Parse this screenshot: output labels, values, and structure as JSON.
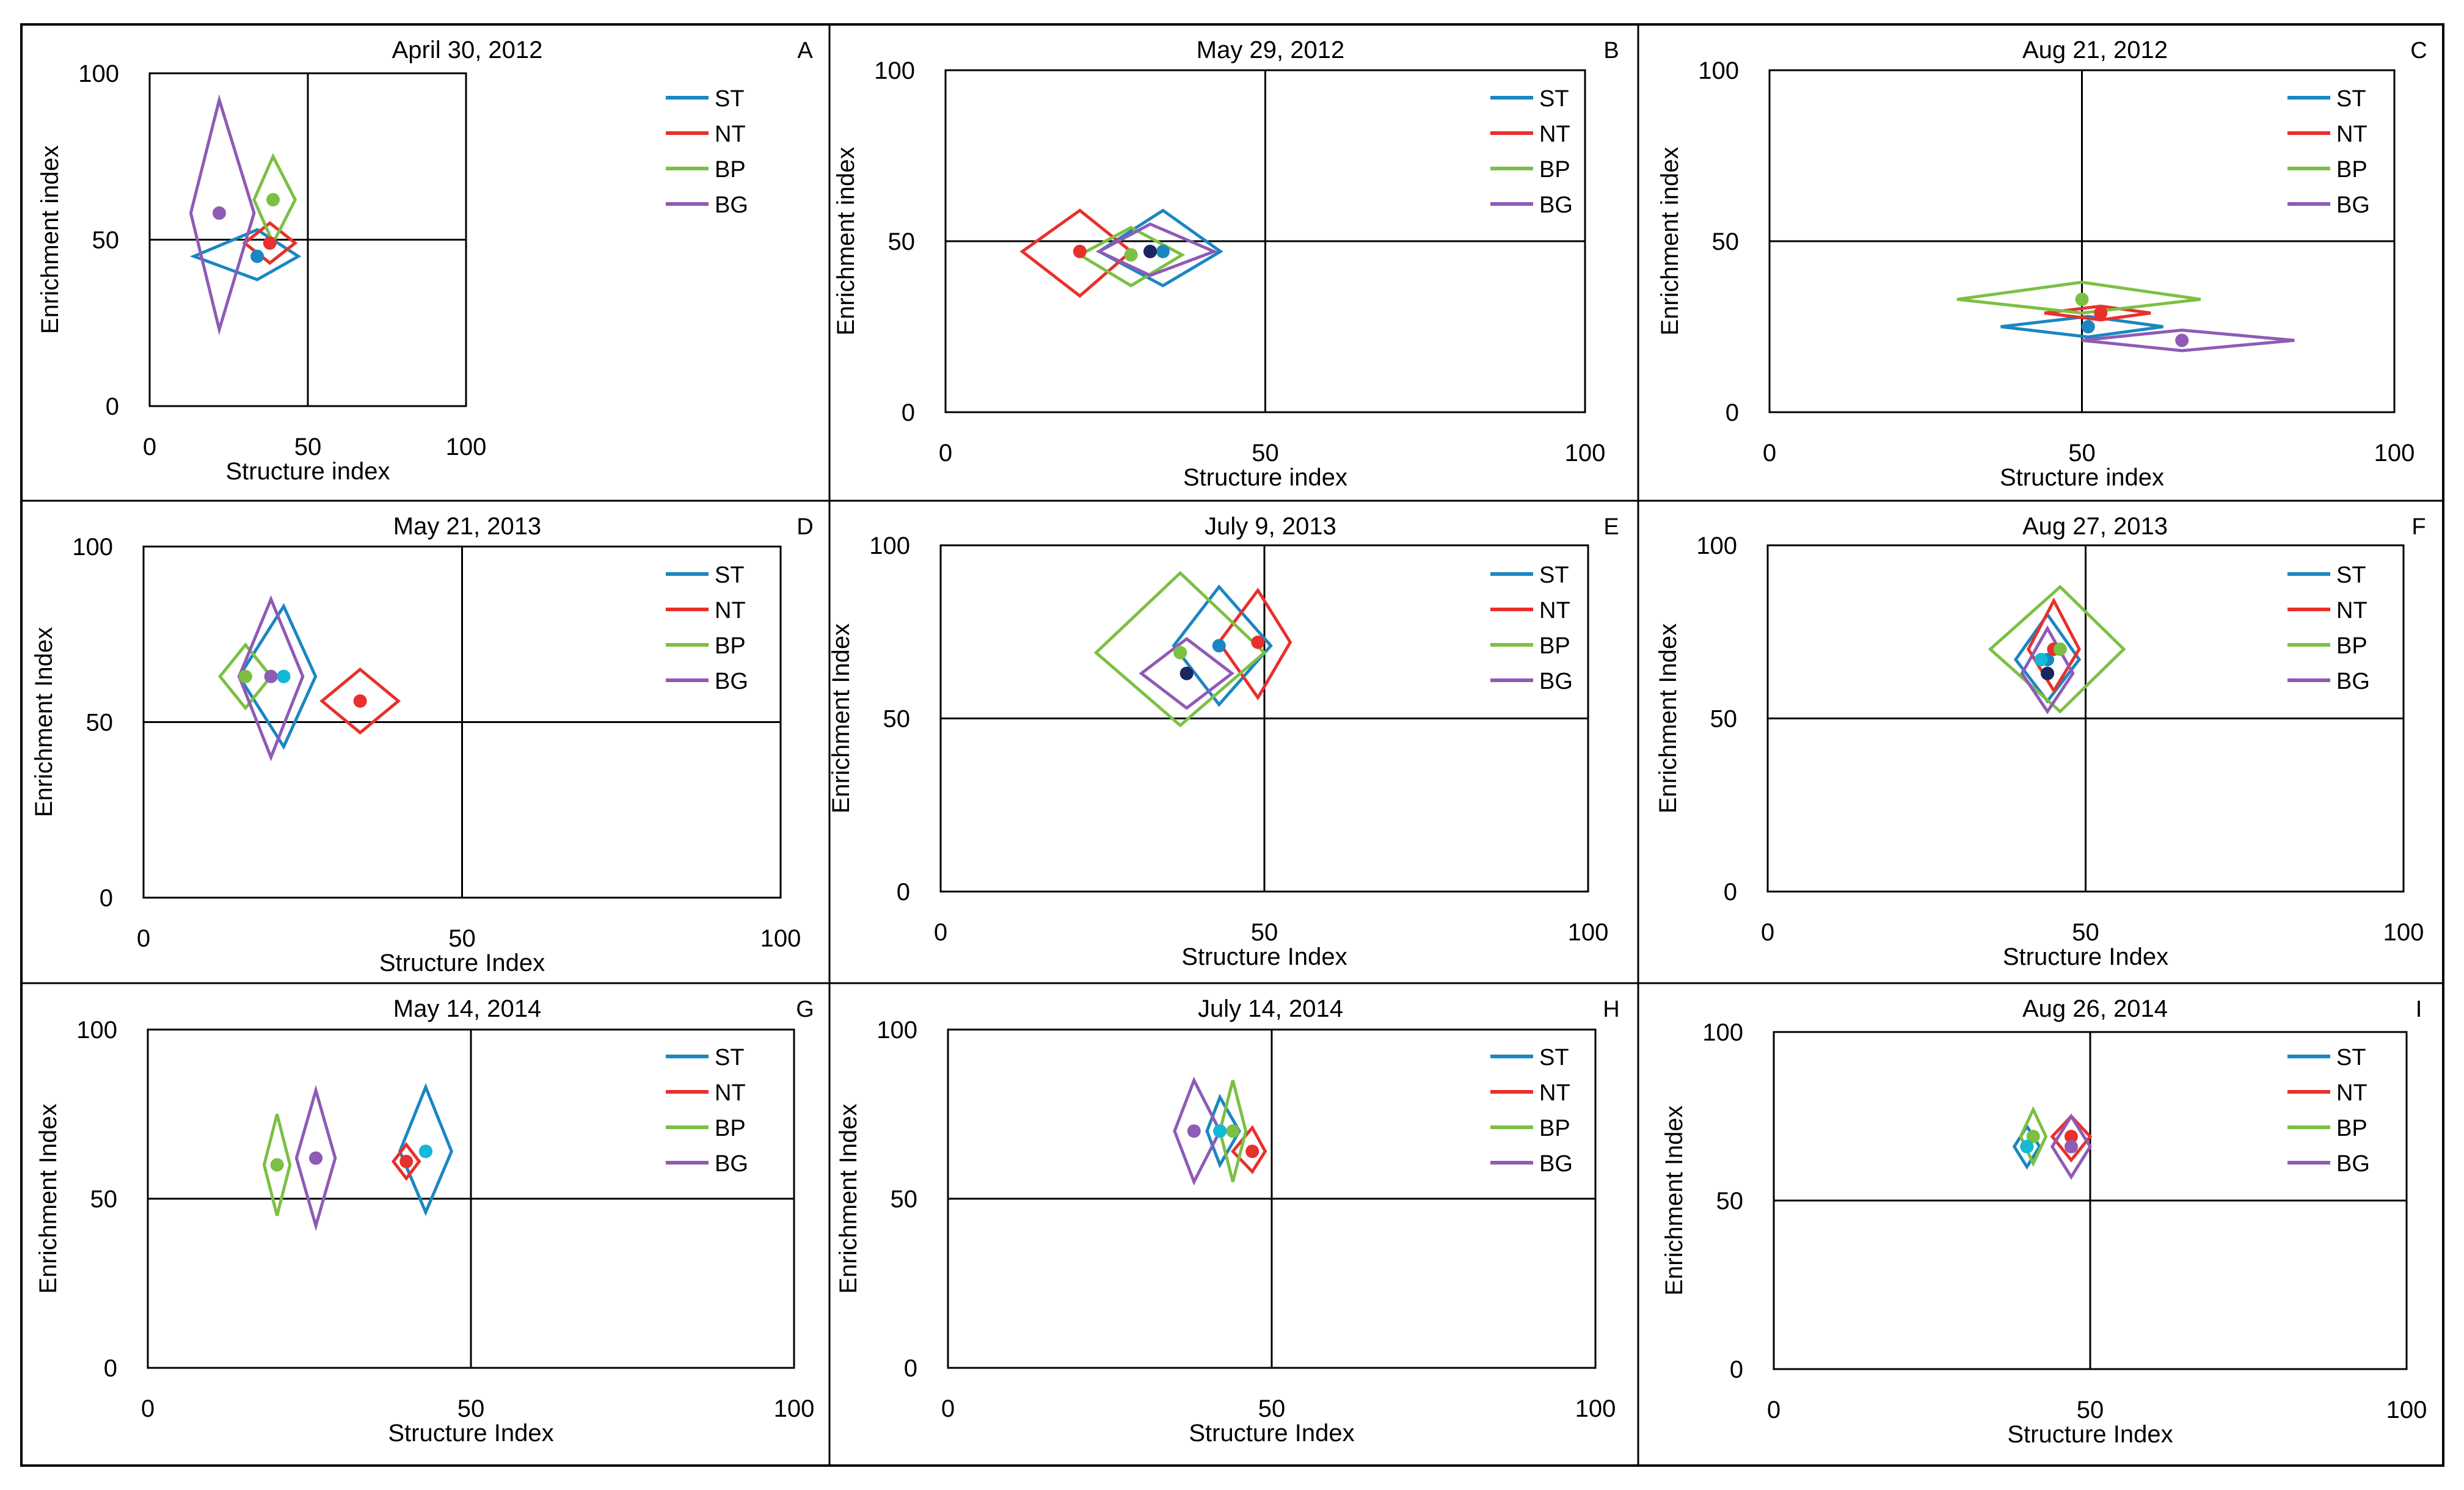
{
  "figure": {
    "domain": "ecological soil food web ordination"
  },
  "legend_colors": {
    "ST": "#1a86c2",
    "NT": "#e8302c",
    "BP": "#7bc043",
    "BG": "#8e5bb5"
  },
  "center_dot_colors": {
    "ST": "#1a86c2",
    "NT": "#e8302c",
    "BP": "#7bc043",
    "BG": "#8e5bb5",
    "aux1": "#13b9d6",
    "aux2": "#1a2660"
  },
  "chart_data": [
    {
      "id": "A",
      "type": "scatter",
      "title": "April 30, 2012",
      "letter": "A",
      "xlabel": "Structure index",
      "ylabel": "Enrichment index",
      "xlim": [
        0,
        100
      ],
      "ylim": [
        0,
        100
      ],
      "ref_lines": {
        "x": 50,
        "y": 50
      },
      "tick_labels": {
        "x": [
          "0",
          "50",
          "100"
        ],
        "y": [
          "0",
          "50",
          "100"
        ]
      },
      "legend": [
        "ST",
        "NT",
        "BP",
        "BG"
      ],
      "series": [
        {
          "name": "ST",
          "cx": 34,
          "cy": 45,
          "xl": 14,
          "xr": 47,
          "yb": 38,
          "yt": 53
        },
        {
          "name": "NT",
          "cx": 38,
          "cy": 49,
          "xl": 30,
          "xr": 46,
          "yb": 43,
          "yt": 55
        },
        {
          "name": "BP",
          "cx": 39,
          "cy": 62,
          "xl": 33,
          "xr": 46,
          "yb": 49,
          "yt": 75
        },
        {
          "name": "BG",
          "cx": 22,
          "cy": 58,
          "xl": 13,
          "xr": 33,
          "yb": 23,
          "yt": 92
        }
      ],
      "extra_dots": []
    },
    {
      "id": "B",
      "type": "scatter",
      "title": "May 29, 2012",
      "letter": "B",
      "xlabel": "Structure index",
      "ylabel": "Enrichment index",
      "xlim": [
        0,
        100
      ],
      "ylim": [
        0,
        100
      ],
      "ref_lines": {
        "x": 50,
        "y": 50
      },
      "tick_labels": {
        "x": [
          "0",
          "50",
          "100"
        ],
        "y": [
          "0",
          "50",
          "100"
        ]
      },
      "legend": [
        "ST",
        "NT",
        "BP",
        "BG"
      ],
      "series": [
        {
          "name": "ST",
          "cx": 34,
          "cy": 47,
          "xl": 24,
          "xr": 43,
          "yb": 37,
          "yt": 59
        },
        {
          "name": "NT",
          "cx": 21,
          "cy": 47,
          "xl": 12,
          "xr": 29,
          "yb": 34,
          "yt": 59
        },
        {
          "name": "BP",
          "cx": 29,
          "cy": 46,
          "xl": 21,
          "xr": 37,
          "yb": 37,
          "yt": 54
        },
        {
          "name": "BG",
          "cx": 32,
          "cy": 47,
          "xl": 24,
          "xr": 42,
          "yb": 40,
          "yt": 55
        }
      ],
      "extra_dots": [
        {
          "color": "aux2",
          "x": 32,
          "y": 47
        }
      ]
    },
    {
      "id": "C",
      "type": "scatter",
      "title": "Aug 21, 2012",
      "letter": "C",
      "xlabel": "Structure index",
      "ylabel": "Enrichment index",
      "xlim": [
        0,
        100
      ],
      "ylim": [
        0,
        100
      ],
      "ref_lines": {
        "x": 50,
        "y": 50
      },
      "tick_labels": {
        "x": [
          "0",
          "50",
          "100"
        ],
        "y": [
          "0",
          "50",
          "100"
        ]
      },
      "legend": [
        "ST",
        "NT",
        "BP",
        "BG"
      ],
      "series": [
        {
          "name": "ST",
          "cx": 51,
          "cy": 25,
          "xl": 37,
          "xr": 63,
          "yb": 22,
          "yt": 28
        },
        {
          "name": "NT",
          "cx": 53,
          "cy": 29,
          "xl": 44,
          "xr": 61,
          "yb": 27,
          "yt": 31
        },
        {
          "name": "BP",
          "cx": 50,
          "cy": 33,
          "xl": 30,
          "xr": 69,
          "yb": 29,
          "yt": 38
        },
        {
          "name": "BG",
          "cx": 66,
          "cy": 21,
          "xl": 50,
          "xr": 84,
          "yb": 18,
          "yt": 24
        }
      ],
      "extra_dots": []
    },
    {
      "id": "D",
      "type": "scatter",
      "title": "May 21, 2013",
      "letter": "D",
      "xlabel": "Structure Index",
      "ylabel": "Enrichment Index",
      "xlim": [
        0,
        100
      ],
      "ylim": [
        0,
        100
      ],
      "ref_lines": {
        "x": 50,
        "y": 50
      },
      "tick_labels": {
        "x": [
          "0",
          "50",
          "100"
        ],
        "y": [
          "0",
          "50",
          "100"
        ]
      },
      "legend": [
        "ST",
        "NT",
        "BP",
        "BG"
      ],
      "series": [
        {
          "name": "ST",
          "cx": 22,
          "cy": 63,
          "xl": 15,
          "xr": 27,
          "yb": 43,
          "yt": 83
        },
        {
          "name": "NT",
          "cx": 34,
          "cy": 56,
          "xl": 28,
          "xr": 40,
          "yb": 47,
          "yt": 65
        },
        {
          "name": "BP",
          "cx": 16,
          "cy": 63,
          "xl": 12,
          "xr": 20,
          "yb": 54,
          "yt": 72
        },
        {
          "name": "BG",
          "cx": 20,
          "cy": 63,
          "xl": 15,
          "xr": 25,
          "yb": 40,
          "yt": 85
        }
      ],
      "extra_dots": [
        {
          "color": "aux1",
          "x": 22,
          "y": 63
        }
      ]
    },
    {
      "id": "E",
      "type": "scatter",
      "title": "July 9, 2013",
      "letter": "E",
      "xlabel": "Structure Index",
      "ylabel": "Enrichment Index",
      "xlim": [
        0,
        100
      ],
      "ylim": [
        0,
        100
      ],
      "ref_lines": {
        "x": 50,
        "y": 50
      },
      "tick_labels": {
        "x": [
          "0",
          "50",
          "100"
        ],
        "y": [
          "0",
          "50",
          "100"
        ]
      },
      "legend": [
        "ST",
        "NT",
        "BP",
        "BG"
      ],
      "series": [
        {
          "name": "ST",
          "cx": 43,
          "cy": 71,
          "xl": 36,
          "xr": 51,
          "yb": 54,
          "yt": 88
        },
        {
          "name": "NT",
          "cx": 49,
          "cy": 72,
          "xl": 43,
          "xr": 54,
          "yb": 56,
          "yt": 87
        },
        {
          "name": "BP",
          "cx": 37,
          "cy": 69,
          "xl": 24,
          "xr": 50,
          "yb": 48,
          "yt": 92
        },
        {
          "name": "BG",
          "cx": 38,
          "cy": 63,
          "xl": 31,
          "xr": 45,
          "yb": 53,
          "yt": 73
        }
      ],
      "extra_dots": [
        {
          "color": "aux2",
          "x": 38,
          "y": 63
        }
      ]
    },
    {
      "id": "F",
      "type": "scatter",
      "title": "Aug 27, 2013",
      "letter": "F",
      "xlabel": "Structure Index",
      "ylabel": "Enrichment Index",
      "xlim": [
        0,
        100
      ],
      "ylim": [
        0,
        100
      ],
      "ref_lines": {
        "x": 50,
        "y": 50
      },
      "tick_labels": {
        "x": [
          "0",
          "50",
          "100"
        ],
        "y": [
          "0",
          "50",
          "100"
        ]
      },
      "legend": [
        "ST",
        "NT",
        "BP",
        "BG"
      ],
      "series": [
        {
          "name": "ST",
          "cx": 44,
          "cy": 67,
          "xl": 39,
          "xr": 49,
          "yb": 55,
          "yt": 80
        },
        {
          "name": "NT",
          "cx": 45,
          "cy": 70,
          "xl": 41,
          "xr": 49,
          "yb": 58,
          "yt": 84
        },
        {
          "name": "BP",
          "cx": 46,
          "cy": 70,
          "xl": 35,
          "xr": 56,
          "yb": 52,
          "yt": 88
        },
        {
          "name": "BG",
          "cx": 44,
          "cy": 63,
          "xl": 40,
          "xr": 48,
          "yb": 52,
          "yt": 76
        }
      ],
      "extra_dots": [
        {
          "color": "aux2",
          "x": 44,
          "y": 63
        },
        {
          "color": "aux1",
          "x": 43,
          "y": 67
        }
      ]
    },
    {
      "id": "G",
      "type": "scatter",
      "title": "May 14, 2014",
      "letter": "G",
      "xlabel": "Structure Index",
      "ylabel": "Enrichment Index",
      "xlim": [
        0,
        100
      ],
      "ylim": [
        0,
        100
      ],
      "ref_lines": {
        "x": 50,
        "y": 50
      },
      "tick_labels": {
        "x": [
          "0",
          "50",
          "100"
        ],
        "y": [
          "0",
          "50",
          "100"
        ]
      },
      "legend": [
        "ST",
        "NT",
        "BP",
        "BG"
      ],
      "series": [
        {
          "name": "ST",
          "cx": 43,
          "cy": 64,
          "xl": 39,
          "xr": 47,
          "yb": 46,
          "yt": 83
        },
        {
          "name": "NT",
          "cx": 40,
          "cy": 61,
          "xl": 38,
          "xr": 42,
          "yb": 56,
          "yt": 66
        },
        {
          "name": "BP",
          "cx": 20,
          "cy": 60,
          "xl": 18,
          "xr": 22,
          "yb": 45,
          "yt": 75
        },
        {
          "name": "BG",
          "cx": 26,
          "cy": 62,
          "xl": 23,
          "xr": 29,
          "yb": 42,
          "yt": 82
        }
      ],
      "extra_dots": [
        {
          "color": "aux1",
          "x": 43,
          "y": 64
        }
      ]
    },
    {
      "id": "H",
      "type": "scatter",
      "title": "July 14, 2014",
      "letter": "H",
      "xlabel": "Structure Index",
      "ylabel": "Enrichment Index",
      "xlim": [
        0,
        100
      ],
      "ylim": [
        0,
        100
      ],
      "ref_lines": {
        "x": 50,
        "y": 50
      },
      "tick_labels": {
        "x": [
          "0",
          "50",
          "100"
        ],
        "y": [
          "0",
          "50",
          "100"
        ]
      },
      "legend": [
        "ST",
        "NT",
        "BP",
        "BG"
      ],
      "series": [
        {
          "name": "ST",
          "cx": 42,
          "cy": 70,
          "xl": 40,
          "xr": 45,
          "yb": 60,
          "yt": 80
        },
        {
          "name": "NT",
          "cx": 47,
          "cy": 64,
          "xl": 44,
          "xr": 49,
          "yb": 58,
          "yt": 71
        },
        {
          "name": "BP",
          "cx": 44,
          "cy": 70,
          "xl": 42,
          "xr": 46,
          "yb": 55,
          "yt": 85
        },
        {
          "name": "BG",
          "cx": 38,
          "cy": 70,
          "xl": 35,
          "xr": 42,
          "yb": 55,
          "yt": 85
        }
      ],
      "extra_dots": [
        {
          "color": "aux1",
          "x": 42,
          "y": 70
        }
      ]
    },
    {
      "id": "I",
      "type": "scatter",
      "title": "Aug 26, 2014",
      "letter": "I",
      "xlabel": "Structure Index",
      "ylabel": "Enrichment Index",
      "xlim": [
        0,
        100
      ],
      "ylim": [
        0,
        100
      ],
      "ref_lines": {
        "x": 50,
        "y": 50
      },
      "tick_labels": {
        "x": [
          "0",
          "50",
          "100"
        ],
        "y": [
          "0",
          "50",
          "100"
        ]
      },
      "legend": [
        "ST",
        "NT",
        "BP",
        "BG"
      ],
      "series": [
        {
          "name": "ST",
          "cx": 40,
          "cy": 66,
          "xl": 38,
          "xr": 42,
          "yb": 60,
          "yt": 72
        },
        {
          "name": "NT",
          "cx": 47,
          "cy": 69,
          "xl": 44,
          "xr": 50,
          "yb": 62,
          "yt": 75
        },
        {
          "name": "BP",
          "cx": 41,
          "cy": 69,
          "xl": 39,
          "xr": 43,
          "yb": 61,
          "yt": 77
        },
        {
          "name": "BG",
          "cx": 47,
          "cy": 66,
          "xl": 44,
          "xr": 50,
          "yb": 57,
          "yt": 75
        }
      ],
      "extra_dots": [
        {
          "color": "aux1",
          "x": 40,
          "y": 66
        }
      ]
    }
  ]
}
